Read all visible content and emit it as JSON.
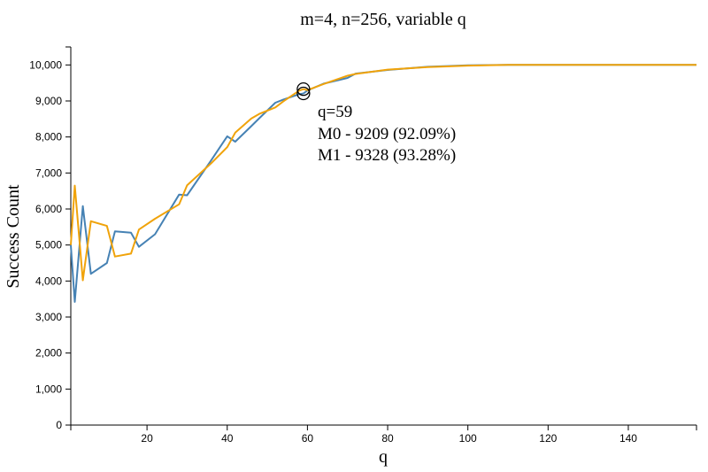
{
  "chart_data": {
    "type": "line",
    "title": "m=4, n=256, variable q",
    "xlabel": "q",
    "ylabel": "Success Count",
    "xlim": [
      1,
      157
    ],
    "ylim": [
      0,
      10500
    ],
    "x_ticks": [
      20,
      40,
      60,
      80,
      100,
      120,
      140
    ],
    "y_ticks": [
      0,
      1000,
      2000,
      3000,
      4000,
      5000,
      6000,
      7000,
      8000,
      9000,
      10000
    ],
    "y_tick_labels": [
      "0",
      "1,000",
      "2,000",
      "3,000",
      "4,000",
      "5,000",
      "6,000",
      "7,000",
      "8,000",
      "9,000",
      "10,000"
    ],
    "x_tick_labels": [
      "20",
      "40",
      "60",
      "80",
      "100",
      "120",
      "140"
    ],
    "grid": false,
    "series": [
      {
        "color": "#4682b4",
        "x": [
          1,
          2,
          4,
          6,
          10,
          12,
          16,
          18,
          22,
          28,
          30,
          36,
          40,
          42,
          46,
          48,
          52,
          54,
          58,
          59,
          60,
          64,
          70,
          72,
          80,
          90,
          100,
          110,
          120,
          130,
          140,
          150,
          157
        ],
        "values": [
          5000,
          3420,
          6080,
          4200,
          4500,
          5380,
          5340,
          4950,
          5300,
          6400,
          6380,
          7350,
          8020,
          7870,
          8300,
          8520,
          8950,
          9040,
          9190,
          9209,
          9290,
          9480,
          9640,
          9760,
          9860,
          9950,
          9990,
          10000,
          10000,
          10000,
          10000,
          10000,
          10000
        ]
      },
      {
        "color": "#f0a30a",
        "x": [
          1,
          2,
          4,
          6,
          10,
          12,
          16,
          18,
          22,
          28,
          30,
          36,
          40,
          42,
          46,
          48,
          52,
          54,
          58,
          59,
          60,
          64,
          70,
          72,
          80,
          90,
          100,
          110,
          120,
          130,
          140,
          150,
          157
        ],
        "values": [
          5000,
          6650,
          4020,
          5660,
          5530,
          4680,
          4760,
          5430,
          5730,
          6130,
          6660,
          7270,
          7720,
          8120,
          8510,
          8640,
          8820,
          8990,
          9290,
          9328,
          9300,
          9470,
          9700,
          9750,
          9870,
          9940,
          9980,
          10000,
          10000,
          10000,
          10000,
          10000,
          10000
        ]
      }
    ],
    "highlight": {
      "x": 59,
      "values": [
        9209,
        9328
      ],
      "lines": [
        "q=59",
        "M0 - 9209 (92.09%)",
        "M1 - 9328 (93.28%)"
      ]
    }
  }
}
